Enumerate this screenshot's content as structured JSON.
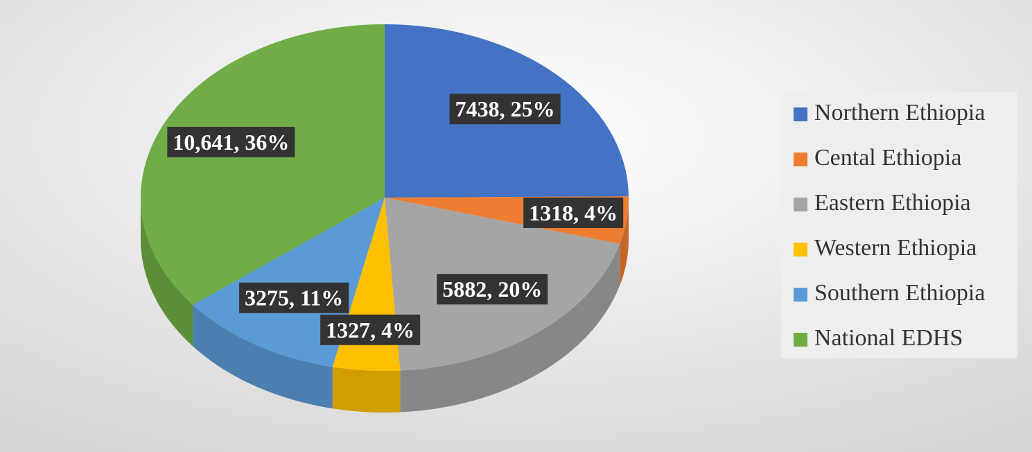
{
  "chart_data": {
    "type": "pie",
    "categories": [
      "Northern Ethiopia",
      "Cental Ethiopia",
      "Eastern Ethiopia",
      "Western Ethiopia",
      "Southern Ethiopia",
      "National EDHS"
    ],
    "values": [
      7438,
      1318,
      5882,
      1327,
      3275,
      10641
    ],
    "value_labels": [
      "7438, 25%",
      "1318, 4%",
      "5882, 20%",
      "1327, 4%",
      "3275, 11%",
      "10,641, 36%"
    ],
    "colors": [
      "#4472c4",
      "#ed7d31",
      "#a5a5a5",
      "#ffc000",
      "#5b9bd5",
      "#70ad47"
    ],
    "legend": "right"
  }
}
